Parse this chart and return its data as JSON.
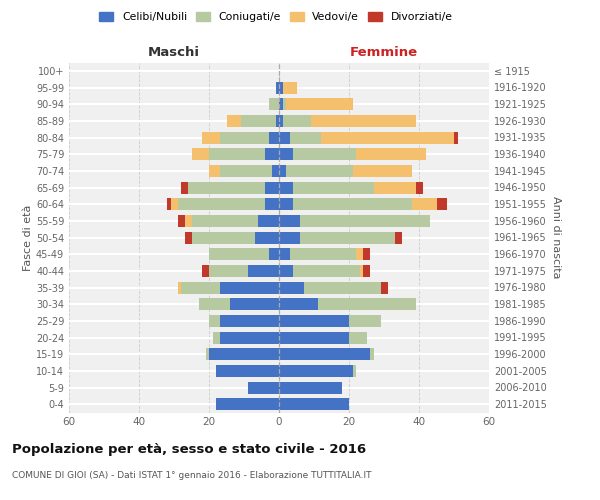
{
  "age_groups": [
    "0-4",
    "5-9",
    "10-14",
    "15-19",
    "20-24",
    "25-29",
    "30-34",
    "35-39",
    "40-44",
    "45-49",
    "50-54",
    "55-59",
    "60-64",
    "65-69",
    "70-74",
    "75-79",
    "80-84",
    "85-89",
    "90-94",
    "95-99",
    "100+"
  ],
  "birth_years": [
    "2011-2015",
    "2006-2010",
    "2001-2005",
    "1996-2000",
    "1991-1995",
    "1986-1990",
    "1981-1985",
    "1976-1980",
    "1971-1975",
    "1966-1970",
    "1961-1965",
    "1956-1960",
    "1951-1955",
    "1946-1950",
    "1941-1945",
    "1936-1940",
    "1931-1935",
    "1926-1930",
    "1921-1925",
    "1916-1920",
    "≤ 1915"
  ],
  "maschi": {
    "celibi": [
      18,
      9,
      18,
      20,
      17,
      17,
      14,
      17,
      9,
      3,
      7,
      6,
      4,
      4,
      2,
      4,
      3,
      1,
      0,
      1,
      0
    ],
    "coniugati": [
      0,
      0,
      0,
      1,
      2,
      3,
      9,
      11,
      11,
      17,
      18,
      19,
      25,
      22,
      15,
      16,
      14,
      10,
      3,
      0,
      0
    ],
    "vedovi": [
      0,
      0,
      0,
      0,
      0,
      0,
      0,
      1,
      0,
      0,
      0,
      2,
      2,
      0,
      3,
      5,
      5,
      4,
      0,
      0,
      0
    ],
    "divorziati": [
      0,
      0,
      0,
      0,
      0,
      0,
      0,
      0,
      2,
      0,
      2,
      2,
      1,
      2,
      0,
      0,
      0,
      0,
      0,
      0,
      0
    ]
  },
  "femmine": {
    "nubili": [
      20,
      18,
      21,
      26,
      20,
      20,
      11,
      7,
      4,
      3,
      6,
      6,
      4,
      4,
      2,
      4,
      3,
      1,
      1,
      1,
      0
    ],
    "coniugate": [
      0,
      0,
      1,
      1,
      5,
      9,
      28,
      22,
      19,
      19,
      27,
      37,
      34,
      23,
      19,
      18,
      9,
      8,
      1,
      0,
      0
    ],
    "vedove": [
      0,
      0,
      0,
      0,
      0,
      0,
      0,
      0,
      1,
      2,
      0,
      0,
      7,
      12,
      17,
      20,
      38,
      30,
      19,
      4,
      0
    ],
    "divorziate": [
      0,
      0,
      0,
      0,
      0,
      0,
      0,
      2,
      2,
      2,
      2,
      0,
      3,
      2,
      0,
      0,
      1,
      0,
      0,
      0,
      0
    ]
  },
  "colors": {
    "celibi_nubili": "#4472c4",
    "coniugati_e": "#b7c9a0",
    "vedovi_e": "#f5c06e",
    "divorziati_e": "#c0392b"
  },
  "xlim": 60,
  "title1": "Popolazione per età, sesso e stato civile - 2016",
  "title2": "COMUNE DI GIOI (SA) - Dati ISTAT 1° gennaio 2016 - Elaborazione TUTTITALIA.IT",
  "label_maschi": "Maschi",
  "label_femmine": "Femmine",
  "ylabel_left": "Fasce di età",
  "ylabel_right": "Anni di nascita",
  "legend_labels": [
    "Celibi/Nubili",
    "Coniugati/e",
    "Vedovi/e",
    "Divorziati/e"
  ],
  "bg_color": "#f0f0f0",
  "fig_bg": "#ffffff"
}
